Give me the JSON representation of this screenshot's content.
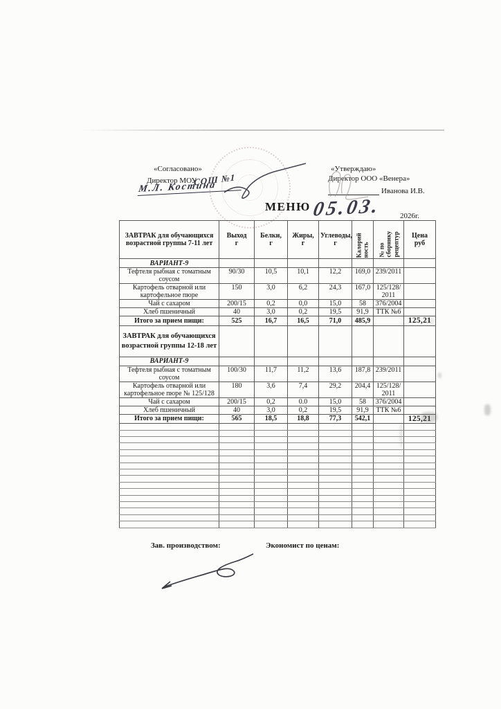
{
  "page": {
    "title": "МЕНЮ",
    "date_handwritten": "05.03.",
    "year_label": "2026г."
  },
  "colors": {
    "paper": "#fcfcfb",
    "ink": "#1a1a1a",
    "stamp": "#bca4aa"
  },
  "approvals": {
    "left": {
      "line1": "«Согласовано»",
      "line2": "Директор МОУ",
      "line2_handwritten": "СОШ №1",
      "signature_handwritten": "М.Л. Костина"
    },
    "right": {
      "line1": "«Утверждаю»",
      "line2": "Директор ООО «Венера»",
      "name": "Иванова И.В."
    }
  },
  "table": {
    "col_out": "Выход\nг",
    "col_protein": "Белки,\nг",
    "col_fat": "Жиры,\nг",
    "col_carbs": "Углеводы,\nг",
    "col_kcal": "Калорий\nность",
    "col_recipe": "№ по\nсборнику\nрецептур",
    "col_price": "Цена\nруб",
    "s1": {
      "header_title": "ЗАВТРАК для обучающихся\nвозрастной группы 7-11 лет",
      "variant": "ВАРИАНТ-9",
      "rows": [
        [
          "Тефтеля рыбная с томатным\nсоусом",
          "90/30",
          "10,5",
          "10,1",
          "12,2",
          "169,0",
          "239/2011",
          ""
        ],
        [
          "Картофель отварной или\nкартофельное пюре",
          "150",
          "3,0",
          "6,2",
          "24,3",
          "167,0",
          "125/128/\n2011",
          ""
        ],
        [
          "Чай с сахаром",
          "200/15",
          "0,2",
          "0,0",
          "15,0",
          "58",
          "376/2004",
          ""
        ],
        [
          "Хлеб пшеничный",
          "40",
          "3,0",
          "0,2",
          "19,5",
          "91,9",
          "ТТК №6",
          ""
        ]
      ],
      "total": [
        "Итого за прием пищи:",
        "525",
        "16,7",
        "16,5",
        "71,0",
        "485,9",
        "",
        "125,21"
      ]
    },
    "s2": {
      "section_title": "ЗАВТРАК для обучающихся\nвозрастной группы 12-18 лет",
      "variant": "ВАРИАНТ-9",
      "rows": [
        [
          "Тефтеля рыбная с томатным\nсоусом",
          "100/30",
          "11,7",
          "11,2",
          "13,6",
          "187,8",
          "239/2011",
          ""
        ],
        [
          "Картофель отварной или\nкартофельное пюре № 125/128",
          "180",
          "3,6",
          "7,4",
          "29,2",
          "204,4",
          "125/128/\n2011",
          ""
        ],
        [
          "Чай с сахаром",
          "200/15",
          "0,2",
          "0.0",
          "15,0",
          "58",
          "376/2004",
          ""
        ],
        [
          "Хлеб пшеничный",
          "40",
          "3,0",
          "0,2",
          "19,5",
          "91,9",
          "ТТК №6",
          ""
        ]
      ],
      "total": [
        "Итого за прием пищи:",
        "565",
        "18,5",
        "18,8",
        "77,3",
        "542,1",
        "",
        "125,21"
      ]
    },
    "empty_row_count": 16
  },
  "footer": {
    "left_label": "Зав. производством:",
    "right_label": "Экономист по ценам:"
  }
}
